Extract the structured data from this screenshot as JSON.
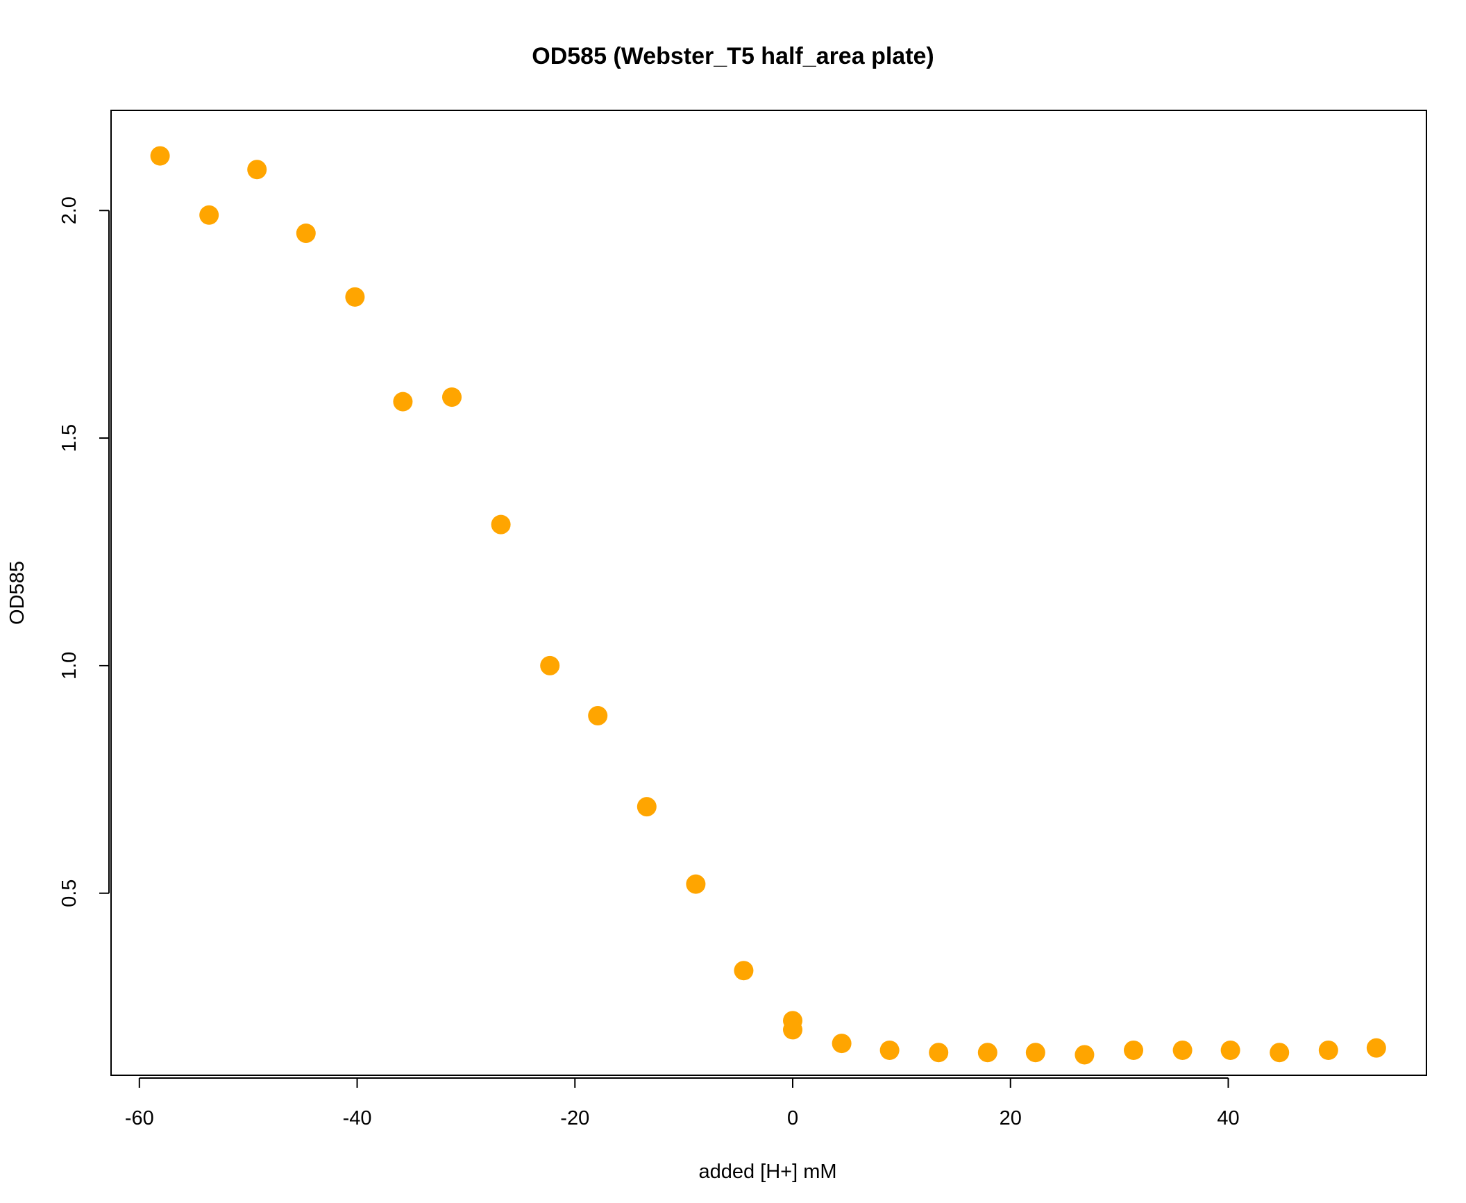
{
  "chart_data": {
    "type": "scatter",
    "title": "OD585 (Webster_T5 half_area plate)",
    "xlabel": "added [H+] mM",
    "ylabel": "OD585",
    "xlim": [
      -62.6,
      58.2
    ],
    "ylim": [
      0.1,
      2.22
    ],
    "x_ticks": [
      -60,
      -40,
      -20,
      0,
      20,
      40
    ],
    "x_tick_labels": [
      "-60",
      "-40",
      "-20",
      "0",
      "20",
      "40"
    ],
    "y_ticks": [
      0.5,
      1.0,
      1.5,
      2.0
    ],
    "y_tick_labels": [
      "0.5",
      "1.0",
      "1.5",
      "2.0"
    ],
    "grid": false,
    "marker_color": "#FFA500",
    "series": [
      {
        "name": "OD585",
        "x": [
          -58.1,
          -53.6,
          -49.2,
          -44.7,
          -40.2,
          -35.8,
          -31.3,
          -26.8,
          -22.3,
          -17.9,
          -13.4,
          -8.9,
          -4.5,
          0.0,
          0.0,
          4.5,
          8.9,
          13.4,
          17.9,
          22.3,
          26.8,
          31.3,
          35.8,
          40.2,
          44.7,
          49.2,
          53.6
        ],
        "y": [
          2.12,
          1.99,
          2.09,
          1.95,
          1.81,
          1.58,
          1.59,
          1.31,
          1.0,
          0.89,
          0.69,
          0.52,
          0.33,
          0.22,
          0.2,
          0.17,
          0.155,
          0.15,
          0.15,
          0.15,
          0.145,
          0.155,
          0.155,
          0.155,
          0.15,
          0.155,
          0.16
        ]
      }
    ]
  }
}
